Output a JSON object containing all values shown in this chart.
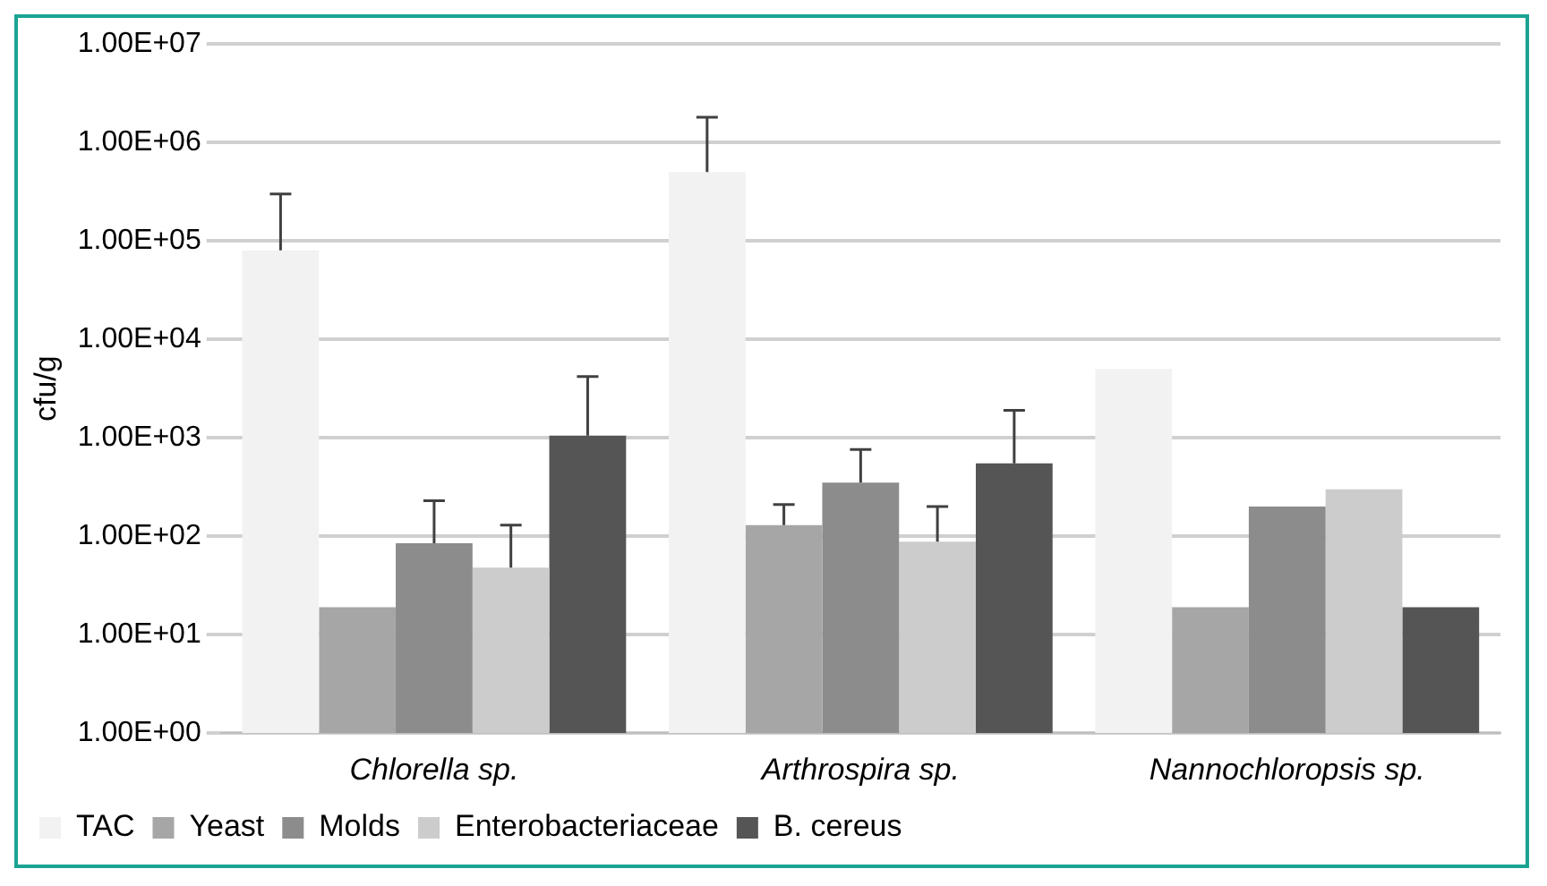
{
  "chart_data": {
    "type": "bar",
    "ylabel": "cfu/g",
    "categories": [
      "Chlorella sp.",
      "Arthrospira sp.",
      "Nannochloropsis sp."
    ],
    "series": [
      {
        "name": "TAC",
        "color": "#f2f2f2",
        "values": [
          80000,
          500000,
          5000
        ],
        "errors": [
          [
            80000,
            300000
          ],
          [
            500000,
            1800000
          ],
          null
        ]
      },
      {
        "name": "Yeast",
        "color": "#a6a6a6",
        "values": [
          19,
          130,
          19
        ],
        "errors": [
          null,
          [
            130,
            210
          ],
          null
        ]
      },
      {
        "name": "Molds",
        "color": "#8c8c8c",
        "values": [
          85,
          350,
          200
        ],
        "errors": [
          [
            85,
            230
          ],
          [
            350,
            760
          ],
          null
        ]
      },
      {
        "name": "Enterobacteriaceae",
        "color": "#cccccc",
        "values": [
          48,
          88,
          300
        ],
        "errors": [
          [
            48,
            130
          ],
          [
            88,
            200
          ],
          null
        ]
      },
      {
        "name": "B. cereus",
        "color": "#555555",
        "values": [
          1050,
          550,
          19
        ],
        "errors": [
          [
            1050,
            4200
          ],
          [
            550,
            1900
          ],
          null
        ]
      }
    ],
    "log": "y",
    "ylim": [
      1,
      10000000
    ],
    "yticks": [
      {
        "value": 1,
        "label": "1.00E+00"
      },
      {
        "value": 10,
        "label": "1.00E+01"
      },
      {
        "value": 100,
        "label": "1.00E+02"
      },
      {
        "value": 1000,
        "label": "1.00E+03"
      },
      {
        "value": 10000,
        "label": "1.00E+04"
      },
      {
        "value": 100000,
        "label": "1.00E+05"
      },
      {
        "value": 1000000,
        "label": "1.00E+06"
      },
      {
        "value": 10000000,
        "label": "1.00E+07"
      }
    ],
    "grid": "y",
    "legend": "bottom left"
  }
}
